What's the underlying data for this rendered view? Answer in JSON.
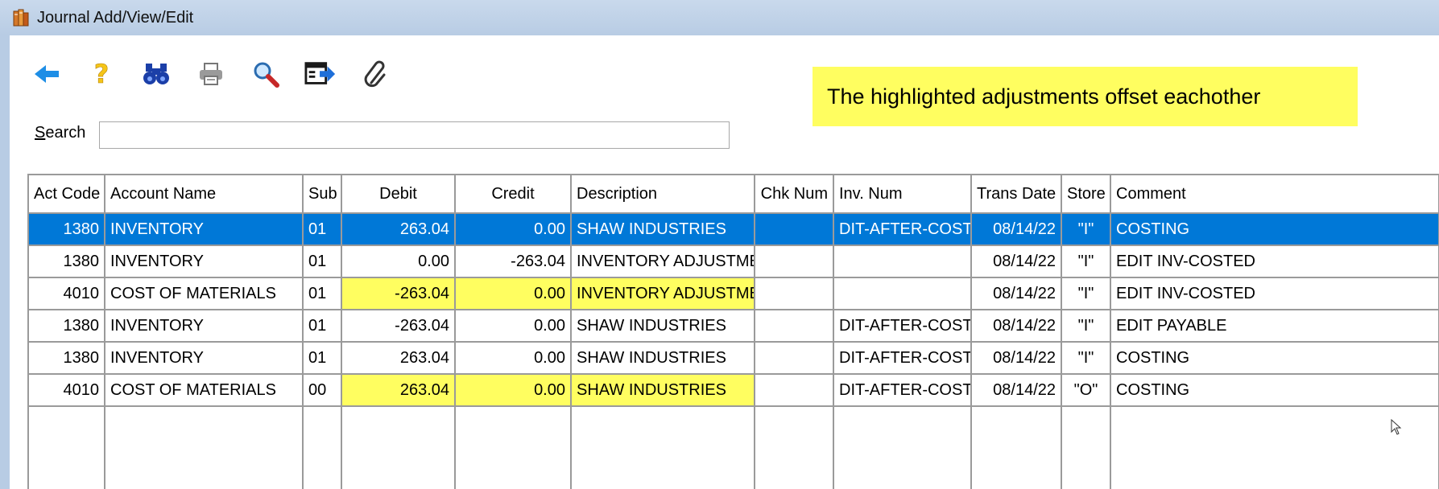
{
  "window": {
    "title": "Journal Add/View/Edit"
  },
  "toolbar": {
    "buttons": [
      {
        "name": "back-button",
        "icon": "back-arrow-icon"
      },
      {
        "name": "help-button",
        "icon": "question-icon"
      },
      {
        "name": "find-button",
        "icon": "binoculars-icon"
      },
      {
        "name": "print-button",
        "icon": "printer-icon"
      },
      {
        "name": "zoom-button",
        "icon": "magnifier-icon"
      },
      {
        "name": "export-button",
        "icon": "export-window-icon"
      },
      {
        "name": "attach-button",
        "icon": "paperclip-icon"
      }
    ]
  },
  "note": {
    "text": "The highlighted adjustments offset eachother",
    "color": "#fffe60"
  },
  "search": {
    "label": "Search",
    "value": ""
  },
  "table": {
    "columns": [
      "Act Code",
      "Account Name",
      "Sub",
      "Debit",
      "Credit",
      "Description",
      "Chk Num",
      "Inv. Num",
      "Trans Date",
      "Store",
      "Comment"
    ],
    "rows": [
      {
        "act_code": "1380",
        "account_name": "INVENTORY",
        "sub": "01",
        "debit": "263.04",
        "credit": "0.00",
        "description": "SHAW INDUSTRIES",
        "chk_num": "",
        "inv_num": "DIT-AFTER-COSTING",
        "trans_date": "08/14/22",
        "store": "\"I\"",
        "comment": "COSTING",
        "selected": true,
        "highlighted": false
      },
      {
        "act_code": "1380",
        "account_name": "INVENTORY",
        "sub": "01",
        "debit": "0.00",
        "credit": "-263.04",
        "description": "INVENTORY ADJUSTMENT",
        "chk_num": "",
        "inv_num": "",
        "trans_date": "08/14/22",
        "store": "\"I\"",
        "comment": "EDIT INV-COSTED",
        "selected": false,
        "highlighted": false
      },
      {
        "act_code": "4010",
        "account_name": "COST OF MATERIALS",
        "sub": "01",
        "debit": "-263.04",
        "credit": "0.00",
        "description": "INVENTORY ADJUSTMENT",
        "chk_num": "",
        "inv_num": "",
        "trans_date": "08/14/22",
        "store": "\"I\"",
        "comment": "EDIT INV-COSTED",
        "selected": false,
        "highlighted": true
      },
      {
        "act_code": "1380",
        "account_name": "INVENTORY",
        "sub": "01",
        "debit": "-263.04",
        "credit": "0.00",
        "description": "SHAW INDUSTRIES",
        "chk_num": "",
        "inv_num": "DIT-AFTER-COSTING",
        "trans_date": "08/14/22",
        "store": "\"I\"",
        "comment": "EDIT PAYABLE",
        "selected": false,
        "highlighted": false
      },
      {
        "act_code": "1380",
        "account_name": "INVENTORY",
        "sub": "01",
        "debit": "263.04",
        "credit": "0.00",
        "description": "SHAW INDUSTRIES",
        "chk_num": "",
        "inv_num": "DIT-AFTER-COSTING",
        "trans_date": "08/14/22",
        "store": "\"I\"",
        "comment": "COSTING",
        "selected": false,
        "highlighted": false
      },
      {
        "act_code": "4010",
        "account_name": "COST OF MATERIALS",
        "sub": "00",
        "debit": "263.04",
        "credit": "0.00",
        "description": "SHAW INDUSTRIES",
        "chk_num": "",
        "inv_num": "DIT-AFTER-COSTING",
        "trans_date": "08/14/22",
        "store": "\"O\"",
        "comment": "COSTING",
        "selected": false,
        "highlighted": true
      }
    ]
  },
  "colors": {
    "selection": "#0078d7",
    "highlight": "#fffe60",
    "accent_icon": "#1a73d9"
  }
}
